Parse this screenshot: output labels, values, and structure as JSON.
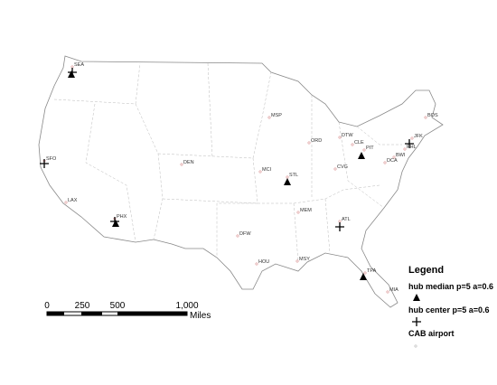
{
  "airports": [
    "SEA",
    "SFO",
    "LAX",
    "PHX",
    "DEN",
    "DFW",
    "HOU",
    "MSP",
    "MCI",
    "STL",
    "ORD",
    "DTW",
    "CLE",
    "PIT",
    "CVG",
    "MEM",
    "MSY",
    "ATL",
    "TPA",
    "MIA",
    "BOS",
    "JFK",
    "PHL",
    "BWI",
    "DCA"
  ],
  "legend": {
    "title": "Legend",
    "hub_median": "hub median p=5 a=0.6",
    "hub_center": "hub center p=5 a=0.6",
    "cab_airport": "CAB airport"
  },
  "scale": {
    "labels": [
      "0",
      "250",
      "500",
      "1,000"
    ],
    "unit": "Miles"
  }
}
